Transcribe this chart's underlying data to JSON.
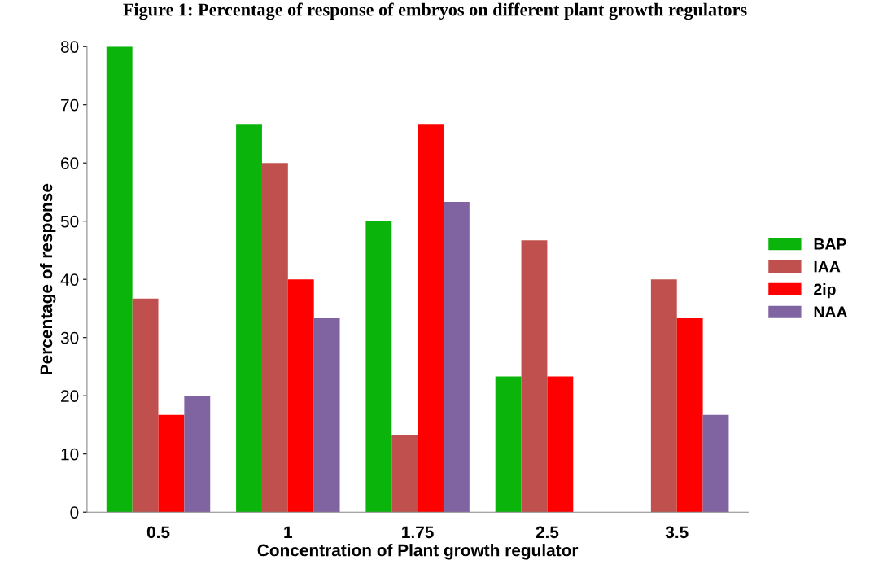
{
  "chart_data": {
    "type": "bar",
    "title": "Figure 1: Percentage of response of embryos on different plant growth regulators",
    "xlabel": "Concentration of Plant growth regulator",
    "ylabel": "Percentage of response",
    "categories": [
      "0.5",
      "1",
      "1.75",
      "2.5",
      "3.5"
    ],
    "series": [
      {
        "name": "BAP",
        "color": "#0ab40a",
        "values": [
          80,
          66.7,
          50,
          23.3,
          0
        ]
      },
      {
        "name": "IAA",
        "color": "#c0504d",
        "values": [
          36.7,
          60,
          13.3,
          46.7,
          40
        ]
      },
      {
        "name": "2ip",
        "color": "#ff0000",
        "values": [
          16.7,
          40,
          66.7,
          23.3,
          33.3
        ]
      },
      {
        "name": "NAA",
        "color": "#8064a2",
        "values": [
          20,
          33.3,
          53.3,
          0,
          16.7
        ]
      }
    ],
    "ylim": [
      0,
      80
    ],
    "yticks": [
      0,
      10,
      20,
      30,
      40,
      50,
      60,
      70,
      80
    ],
    "grid": false,
    "legend": "right"
  }
}
